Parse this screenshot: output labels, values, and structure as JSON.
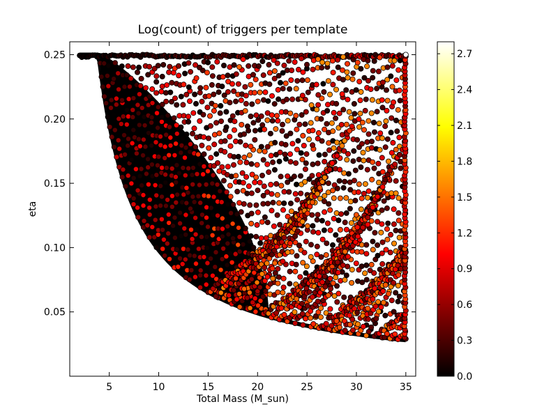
{
  "chart_data": {
    "type": "scatter",
    "title": "Log(count) of triggers per template",
    "xlabel": "Total Mass (M_sun)",
    "ylabel": "eta",
    "xlim": [
      1,
      36
    ],
    "ylim": [
      0.0,
      0.26
    ],
    "xticks": [
      5,
      10,
      15,
      20,
      25,
      30,
      35
    ],
    "yticks": [
      0.05,
      0.1,
      0.15,
      0.2,
      0.25
    ],
    "ytick_labels": [
      "0.05",
      "0.10",
      "0.15",
      "0.20",
      "0.25"
    ],
    "grid": false,
    "colormap": "hot",
    "colorbar": {
      "min": 0.0,
      "max": 2.8,
      "ticks": [
        0.0,
        0.3,
        0.6,
        0.9,
        1.2,
        1.5,
        1.8,
        2.1,
        2.4,
        2.7
      ],
      "tick_labels": [
        "0.0",
        "0.3",
        "0.6",
        "0.9",
        "1.2",
        "1.5",
        "1.8",
        "2.1",
        "2.4",
        "2.7"
      ]
    },
    "series": [
      {
        "marker": "circle",
        "point_edge_color": "#000000",
        "x_range": [
          2,
          35
        ],
        "eta_max": 0.25,
        "eta_min_at_xmax": 0.028,
        "color_value_range": [
          0.0,
          1.6
        ],
        "notable_points": [
          {
            "x": 35.0,
            "y": 0.25,
            "c": 2.8
          }
        ]
      }
    ]
  },
  "colors": {
    "background": "#ffffff",
    "axes": "#000000",
    "dense_region": "#000000"
  }
}
